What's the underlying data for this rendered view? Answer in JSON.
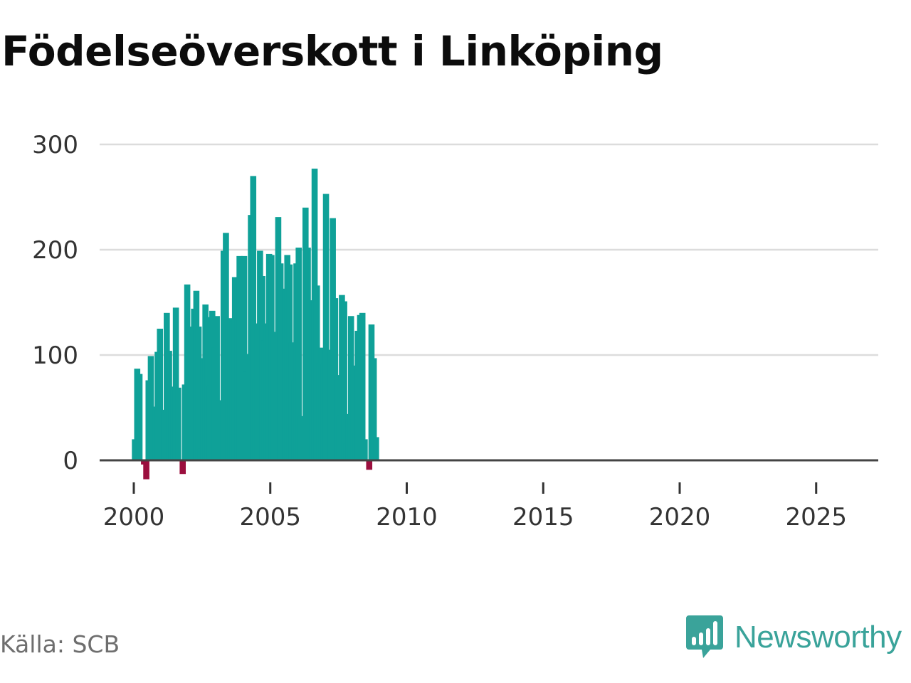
{
  "title": "Födelseöverskott i Linköping",
  "source": "Källa: SCB",
  "brand": {
    "name": "Newsworthy",
    "icon": "newsworthy-logo-icon",
    "color": "#3aa39a"
  },
  "chart_data": {
    "type": "bar",
    "title": "Födelseöverskott i Linköping",
    "xlabel": "",
    "ylabel": "",
    "ylim": [
      -20,
      300
    ],
    "y_ticks": [
      0,
      100,
      200,
      300
    ],
    "y_tick_labels": [
      "0",
      "100",
      "200",
      "300"
    ],
    "x_ticks": [
      2000,
      2005,
      2010,
      2015,
      2020,
      2025
    ],
    "x_tick_labels": [
      "2000",
      "2005",
      "2010",
      "2015",
      "2020",
      "2025"
    ],
    "x_start": 2000,
    "frequency": "monthly",
    "grid": true,
    "positive_color": "#0fa198",
    "negative_color": "#9b0f3e",
    "values": [
      20,
      87,
      82,
      null,
      -4,
      -18,
      76,
      99,
      50,
      51,
      103,
      125,
      25,
      48,
      140,
      104,
      51,
      70,
      145,
      69,
      null,
      -13,
      72,
      167,
      127,
      32,
      144,
      161,
      127,
      11,
      97,
      148,
      136,
      71,
      142,
      107,
      137,
      57,
      57,
      199,
      216,
      128,
      135,
      132,
      174,
      167,
      194,
      187,
      194,
      84,
      101,
      233,
      270,
      77,
      130,
      199,
      175,
      114,
      130,
      196,
      195,
      122,
      117,
      231,
      187,
      100,
      163,
      195,
      186,
      112,
      76,
      187,
      202,
      42,
      31,
      240,
      202,
      83,
      152,
      277,
      166,
      92,
      107,
      92,
      253,
      null,
      105,
      230,
      154,
      81,
      42,
      157,
      151,
      16,
      44,
      137,
      90,
      26,
      123,
      138,
      140,
      20,
      null,
      -9,
      129,
      97,
      22
    ]
  }
}
